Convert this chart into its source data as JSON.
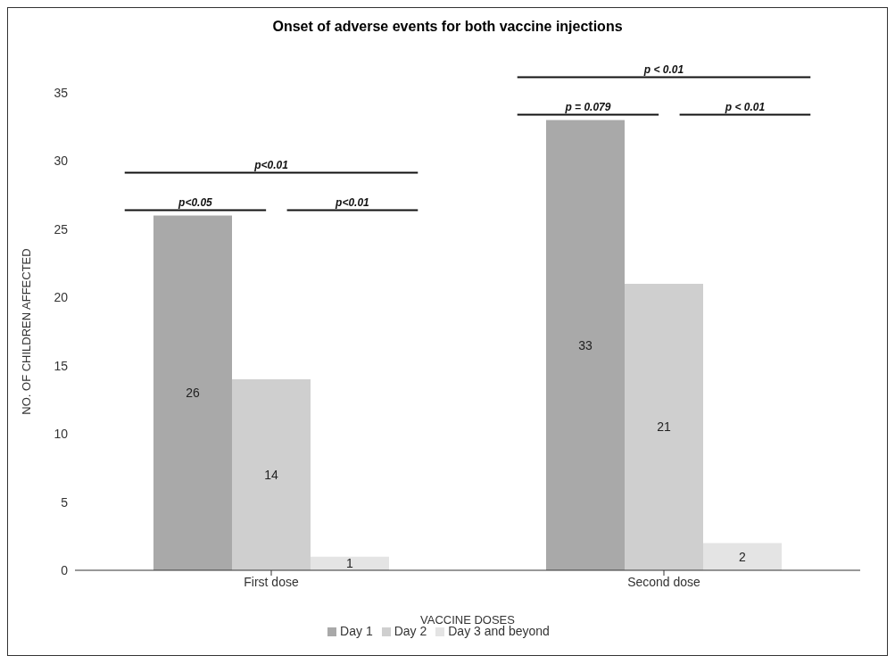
{
  "chart_data": {
    "type": "bar",
    "title": "Onset of adverse events for both vaccine injections",
    "xlabel": "VACCINE DOSES",
    "ylabel": "NO. OF CHILDREN AFFECTED",
    "categories": [
      "First dose",
      "Second dose"
    ],
    "series": [
      {
        "name": "Day 1",
        "color": "#a9a9a9",
        "values": [
          26,
          33
        ]
      },
      {
        "name": "Day 2",
        "color": "#cfcfcf",
        "values": [
          14,
          21
        ]
      },
      {
        "name": "Day 3 and beyond",
        "color": "#e4e4e4",
        "values": [
          1,
          2
        ]
      }
    ],
    "ylim": [
      0,
      35
    ],
    "yticks": [
      0,
      5,
      10,
      15,
      20,
      25,
      30,
      35
    ],
    "grid": false,
    "legend": "bottom",
    "data_labels": true,
    "annotations": [
      "p<0.01",
      "p<0.05",
      "p<0.01",
      "p < 0.01",
      "p = 0.079",
      "p < 0.01"
    ]
  }
}
